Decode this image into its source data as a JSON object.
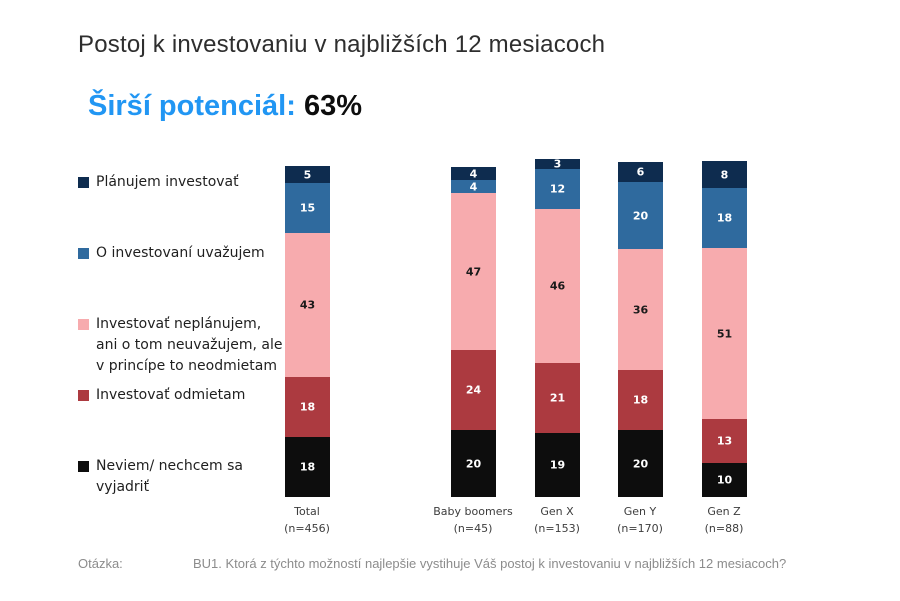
{
  "title": "Postoj k investovaniu v najbližších 12 mesiacoch",
  "subtitle": {
    "label": "Širší potenciál:",
    "value": "63%"
  },
  "footer": {
    "label": "Otázka:",
    "text": "BU1. Ktorá z týchto možností najlepšie vystihuje Váš postoj k investovaniu v najbližších 12 mesiacoch?"
  },
  "colors": {
    "navy": "#0e2c4f",
    "blue": "#2f6a9e",
    "pink": "#f7abae",
    "red": "#ac3a40",
    "black": "#0d0d0d",
    "accent_blue": "#2196f3"
  },
  "chart_data": {
    "type": "bar",
    "stacked": true,
    "orientation": "vertical",
    "unit": "percent",
    "value_axis": "hidden",
    "grid": false,
    "legend_position": "left",
    "title": "Postoj k investovaniu v najbližších 12 mesiacoch",
    "categories": [
      {
        "label": "Total",
        "n": "(n=456)"
      },
      {
        "label": "Baby boomers",
        "n": "(n=45)"
      },
      {
        "label": "Gen X",
        "n": "(n=153)"
      },
      {
        "label": "Gen Y",
        "n": "(n=170)"
      },
      {
        "label": "Gen Z",
        "n": "(n=88)"
      }
    ],
    "series": [
      {
        "name": "Plánujem investovať",
        "legend_lines": [
          "Plánujem investovať"
        ],
        "color": "#0e2c4f",
        "label_color": "#ffffff",
        "values": [
          5,
          4,
          3,
          6,
          8
        ]
      },
      {
        "name": "O investovaní uvažujem",
        "legend_lines": [
          "O investovaní uvažujem"
        ],
        "color": "#2f6a9e",
        "label_color": "#ffffff",
        "values": [
          15,
          4,
          12,
          20,
          18
        ]
      },
      {
        "name": "Investovať neplánujem, ani o tom neuvažujem, ale v princípe to neodmietam",
        "legend_lines": [
          "Investovať neplánujem,",
          "ani o tom neuvažujem, ale",
          "v princípe to neodmietam"
        ],
        "color": "#f7abae",
        "label_color": "#1a1a1a",
        "values": [
          43,
          47,
          46,
          36,
          51
        ]
      },
      {
        "name": "Investovať odmietam",
        "legend_lines": [
          "Investovať odmietam"
        ],
        "color": "#ac3a40",
        "label_color": "#ffffff",
        "values": [
          18,
          24,
          21,
          18,
          13
        ]
      },
      {
        "name": "Neviem/ nechcem sa vyjadriť",
        "legend_lines": [
          "Neviem/ nechcem sa",
          "vyjadriť"
        ],
        "color": "#0d0d0d",
        "label_color": "#ffffff",
        "values": [
          18,
          20,
          19,
          20,
          10
        ]
      }
    ]
  }
}
